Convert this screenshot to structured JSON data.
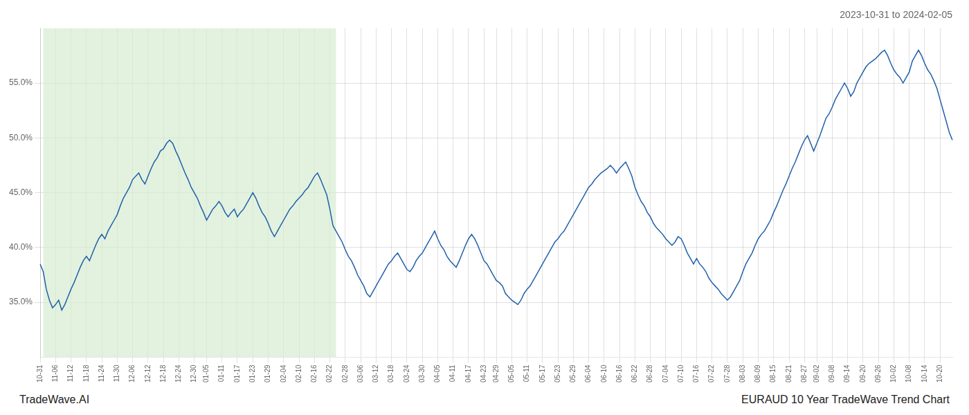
{
  "chart_data": {
    "type": "line",
    "title": "2023-10-31 to 2024-02-05",
    "annotations": [
      "TradeWave.AI",
      "EURAUD 10 Year TradeWave Trend Chart"
    ],
    "color": "#2060a8",
    "grid": true,
    "ylim": [
      30,
      60
    ],
    "yticks": [
      {
        "value": 35.0,
        "label": "35.0%"
      },
      {
        "value": 40.0,
        "label": "40.0%"
      },
      {
        "value": 45.0,
        "label": "45.0%"
      },
      {
        "value": 50.0,
        "label": "50.0%"
      },
      {
        "value": 55.0,
        "label": "55.0%"
      }
    ],
    "shaded_range": {
      "start": 1,
      "end": 96,
      "color": "#d6ecd2"
    },
    "categories": [
      "10-31",
      null,
      null,
      null,
      null,
      "11-06",
      null,
      null,
      null,
      null,
      "11-12",
      null,
      null,
      null,
      null,
      "11-18",
      null,
      null,
      null,
      null,
      "11-24",
      null,
      null,
      null,
      null,
      "11-30",
      null,
      null,
      null,
      null,
      "12-06",
      null,
      null,
      null,
      null,
      "12-12",
      null,
      null,
      null,
      null,
      "12-18",
      null,
      null,
      null,
      null,
      "12-24",
      null,
      null,
      null,
      null,
      "12-30",
      null,
      null,
      null,
      "01-05",
      null,
      null,
      null,
      null,
      "01-11",
      null,
      null,
      null,
      null,
      "01-17",
      null,
      null,
      null,
      null,
      "01-23",
      null,
      null,
      null,
      null,
      "01-29",
      null,
      null,
      null,
      null,
      "02-04",
      null,
      null,
      null,
      null,
      "02-10",
      null,
      null,
      null,
      null,
      "02-16",
      null,
      null,
      null,
      null,
      "02-22",
      null,
      null,
      null,
      null,
      "02-28",
      null,
      null,
      null,
      null,
      "03-06",
      null,
      null,
      null,
      null,
      "03-12",
      null,
      null,
      null,
      null,
      "03-18",
      null,
      null,
      null,
      null,
      "03-24",
      null,
      null,
      null,
      null,
      "03-30",
      null,
      null,
      null,
      null,
      "04-05",
      null,
      null,
      null,
      null,
      "04-11",
      null,
      null,
      null,
      null,
      "04-17",
      null,
      null,
      null,
      null,
      "04-23",
      null,
      null,
      null,
      "04-29",
      null,
      null,
      null,
      null,
      "05-05",
      null,
      null,
      null,
      null,
      "05-11",
      null,
      null,
      null,
      null,
      "05-17",
      null,
      null,
      null,
      null,
      "05-23",
      null,
      null,
      null,
      null,
      "05-29",
      null,
      null,
      null,
      null,
      "06-04",
      null,
      null,
      null,
      null,
      "06-10",
      null,
      null,
      null,
      null,
      "06-16",
      null,
      null,
      null,
      null,
      "06-22",
      null,
      null,
      null,
      null,
      "06-28",
      null,
      null,
      null,
      null,
      "07-04",
      null,
      null,
      null,
      null,
      "07-10",
      null,
      null,
      null,
      null,
      "07-16",
      null,
      null,
      null,
      null,
      "07-22",
      null,
      null,
      null,
      null,
      "07-28",
      null,
      null,
      null,
      null,
      "08-03",
      null,
      null,
      null,
      null,
      "08-09",
      null,
      null,
      null,
      null,
      "08-15",
      null,
      null,
      null,
      null,
      "08-21",
      null,
      null,
      null,
      null,
      "08-27",
      null,
      null,
      null,
      "09-02",
      null,
      null,
      null,
      null,
      "09-08",
      null,
      null,
      null,
      null,
      "09-14",
      null,
      null,
      null,
      null,
      "09-20",
      null,
      null,
      null,
      null,
      "09-26",
      null,
      null,
      null,
      null,
      "10-02",
      null,
      null,
      null,
      null,
      "10-08",
      null,
      null,
      null,
      null,
      "10-14",
      null,
      null,
      null,
      null,
      "10-20",
      null,
      null,
      null,
      null
    ],
    "values": [
      38.5,
      37.8,
      36.2,
      35.2,
      34.5,
      34.8,
      35.2,
      34.3,
      34.8,
      35.5,
      36.2,
      36.8,
      37.5,
      38.2,
      38.8,
      39.2,
      38.8,
      39.5,
      40.2,
      40.8,
      41.2,
      40.8,
      41.5,
      42.0,
      42.5,
      43.0,
      43.8,
      44.5,
      45.0,
      45.5,
      46.2,
      46.5,
      46.8,
      46.2,
      45.8,
      46.5,
      47.2,
      47.8,
      48.2,
      48.8,
      49.0,
      49.5,
      49.8,
      49.5,
      48.8,
      48.2,
      47.5,
      46.8,
      46.2,
      45.5,
      45.0,
      44.5,
      43.8,
      43.2,
      42.5,
      43.0,
      43.5,
      43.8,
      44.2,
      43.8,
      43.2,
      42.8,
      43.2,
      43.5,
      42.8,
      43.2,
      43.5,
      44.0,
      44.5,
      45.0,
      44.5,
      43.8,
      43.2,
      42.8,
      42.2,
      41.5,
      41.0,
      41.5,
      42.0,
      42.5,
      43.0,
      43.5,
      43.8,
      44.2,
      44.5,
      44.8,
      45.2,
      45.5,
      46.0,
      46.5,
      46.8,
      46.2,
      45.5,
      44.8,
      43.5,
      42.0,
      41.5,
      41.0,
      40.5,
      39.8,
      39.2,
      38.8,
      38.2,
      37.5,
      37.0,
      36.5,
      35.8,
      35.5,
      36.0,
      36.5,
      37.0,
      37.5,
      38.0,
      38.5,
      38.8,
      39.2,
      39.5,
      39.0,
      38.5,
      38.0,
      37.8,
      38.2,
      38.8,
      39.2,
      39.5,
      40.0,
      40.5,
      41.0,
      41.5,
      40.8,
      40.2,
      39.8,
      39.2,
      38.8,
      38.5,
      38.2,
      38.8,
      39.5,
      40.2,
      40.8,
      41.2,
      40.8,
      40.2,
      39.5,
      38.8,
      38.5,
      38.0,
      37.5,
      37.0,
      36.8,
      36.5,
      35.8,
      35.5,
      35.2,
      35.0,
      34.8,
      35.2,
      35.8,
      36.2,
      36.5,
      37.0,
      37.5,
      38.0,
      38.5,
      39.0,
      39.5,
      40.0,
      40.5,
      40.8,
      41.2,
      41.5,
      42.0,
      42.5,
      43.0,
      43.5,
      44.0,
      44.5,
      45.0,
      45.5,
      45.8,
      46.2,
      46.5,
      46.8,
      47.0,
      47.2,
      47.5,
      47.2,
      46.8,
      47.2,
      47.5,
      47.8,
      47.2,
      46.5,
      45.5,
      44.8,
      44.2,
      43.8,
      43.2,
      42.8,
      42.2,
      41.8,
      41.5,
      41.2,
      40.8,
      40.5,
      40.2,
      40.5,
      41.0,
      40.8,
      40.2,
      39.5,
      39.0,
      38.5,
      39.0,
      38.5,
      38.2,
      37.8,
      37.2,
      36.8,
      36.5,
      36.2,
      35.8,
      35.5,
      35.2,
      35.5,
      36.0,
      36.5,
      37.0,
      37.8,
      38.5,
      39.0,
      39.5,
      40.2,
      40.8,
      41.2,
      41.5,
      42.0,
      42.5,
      43.2,
      43.8,
      44.5,
      45.2,
      45.8,
      46.5,
      47.2,
      47.8,
      48.5,
      49.2,
      49.8,
      50.2,
      49.5,
      48.8,
      49.5,
      50.2,
      51.0,
      51.8,
      52.2,
      52.8,
      53.5,
      54.0,
      54.5,
      55.0,
      54.5,
      53.8,
      54.2,
      55.0,
      55.5,
      56.0,
      56.5,
      56.8,
      57.0,
      57.2,
      57.5,
      57.8,
      58.0,
      57.5,
      56.8,
      56.2,
      55.8,
      55.5,
      55.0,
      55.5,
      56.0,
      57.0,
      57.5,
      58.0,
      57.5,
      56.8,
      56.2,
      55.8,
      55.2,
      54.5,
      53.5,
      52.5,
      51.5,
      50.5,
      49.8
    ]
  }
}
